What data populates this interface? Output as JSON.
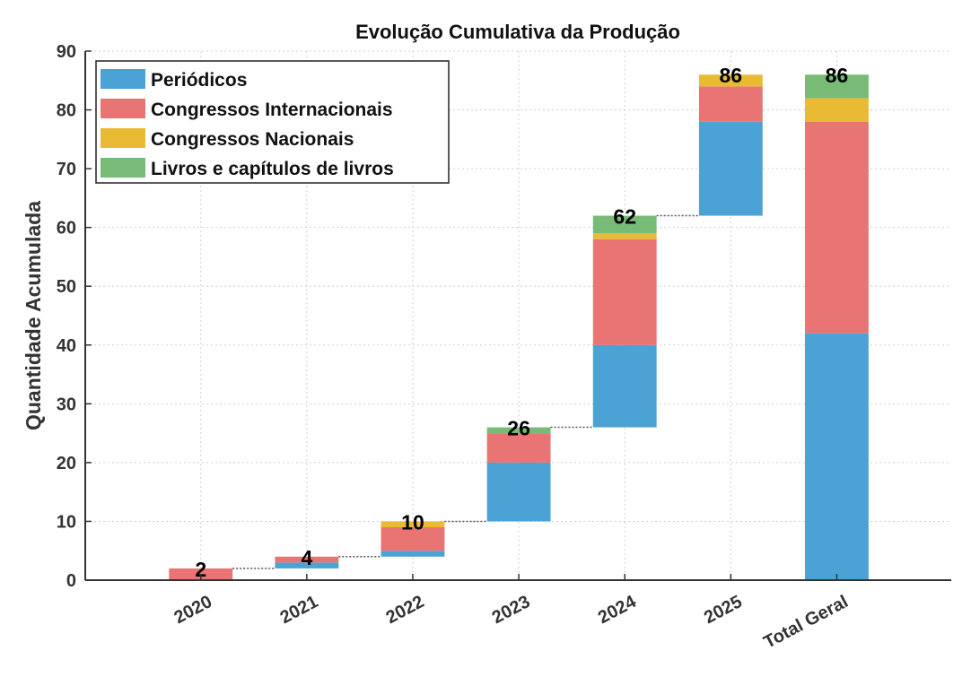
{
  "chart_data": {
    "type": "bar",
    "subtype": "stacked-waterfall",
    "title": "Evolução Cumulativa da Produção",
    "xlabel": "",
    "ylabel": "Quantidade Acumulada",
    "ylim": [
      0,
      90
    ],
    "yticks": [
      0,
      10,
      20,
      30,
      40,
      50,
      60,
      70,
      80,
      90
    ],
    "grid": true,
    "legend_position": "top-left",
    "categories": [
      "2020",
      "2021",
      "2022",
      "2023",
      "2024",
      "2025",
      "Total Geral"
    ],
    "bases": [
      0,
      2,
      4,
      10,
      26,
      62,
      0
    ],
    "totals": [
      2,
      4,
      10,
      26,
      62,
      86,
      86
    ],
    "series": [
      {
        "name": "Periódicos",
        "color": "#4aa3d4",
        "values": [
          0,
          1,
          1,
          10,
          14,
          16,
          42
        ]
      },
      {
        "name": "Congressos Internacionais",
        "color": "#e87474",
        "values": [
          2,
          1,
          4,
          5,
          18,
          6,
          36
        ]
      },
      {
        "name": "Congressos Nacionais",
        "color": "#e9bb35",
        "values": [
          0,
          0,
          1,
          0,
          1,
          2,
          4
        ]
      },
      {
        "name": "Livros e capítulos de livros",
        "color": "#77bb77",
        "values": [
          0,
          0,
          0,
          1,
          3,
          0,
          4
        ]
      }
    ]
  }
}
